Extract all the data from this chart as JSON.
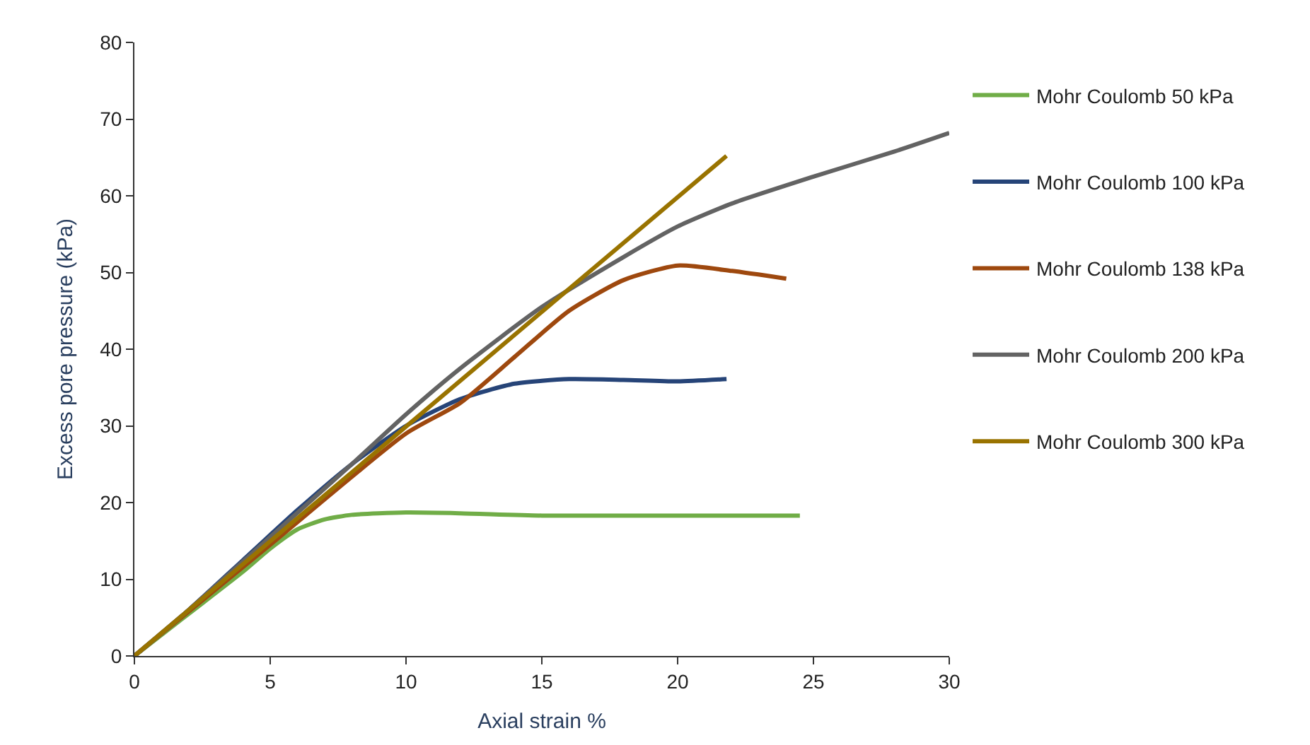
{
  "chart_data": {
    "type": "line",
    "xlabel": "Axial strain %",
    "ylabel": "Excess pore pressure (kPa)",
    "xlim": [
      0,
      30
    ],
    "xticks": [
      0,
      5,
      10,
      15,
      20,
      25,
      30
    ],
    "ylim": [
      0,
      80
    ],
    "yticks": [
      0,
      10,
      20,
      30,
      40,
      50,
      60,
      70,
      80
    ],
    "legend": "right",
    "marker": "none",
    "line_style": "solid",
    "series": [
      {
        "name": "Mohr Coulomb 50 kPa",
        "color": "#70ad47",
        "x": [
          0,
          2,
          4,
          5,
          6,
          7,
          8,
          10,
          12,
          15,
          20,
          24.5
        ],
        "values": [
          0,
          5.5,
          11,
          14,
          16.5,
          17.8,
          18.4,
          18.7,
          18.6,
          18.3,
          18.3,
          18.3
        ]
      },
      {
        "name": "Mohr Coulomb 100 kPa",
        "color": "#264478",
        "x": [
          0,
          2,
          4,
          6,
          8,
          10,
          12,
          14,
          16,
          18,
          20,
          21.8
        ],
        "values": [
          0,
          6,
          12.5,
          19,
          25,
          30,
          33.5,
          35.5,
          36.1,
          36,
          35.8,
          36.1
        ]
      },
      {
        "name": "Mohr Coulomb 138 kPa",
        "color": "#9e480e",
        "x": [
          0,
          5,
          10,
          12,
          14,
          16,
          18,
          20,
          22,
          24
        ],
        "values": [
          0,
          14.5,
          29,
          33,
          39,
          45,
          49,
          50.9,
          50.2,
          49.2
        ]
      },
      {
        "name": "Mohr Coulomb 200 kPa",
        "color": "#636363",
        "x": [
          0,
          2,
          5,
          8,
          10,
          12,
          15,
          18,
          20,
          22,
          25,
          28,
          30
        ],
        "values": [
          0,
          6,
          15.5,
          25,
          31.5,
          37.5,
          45.5,
          52,
          56,
          59,
          62.5,
          65.8,
          68.2
        ]
      },
      {
        "name": "Mohr Coulomb 300 kPa",
        "color": "#997300",
        "x": [
          0,
          21.8
        ],
        "values": [
          0,
          65.2
        ]
      }
    ]
  }
}
